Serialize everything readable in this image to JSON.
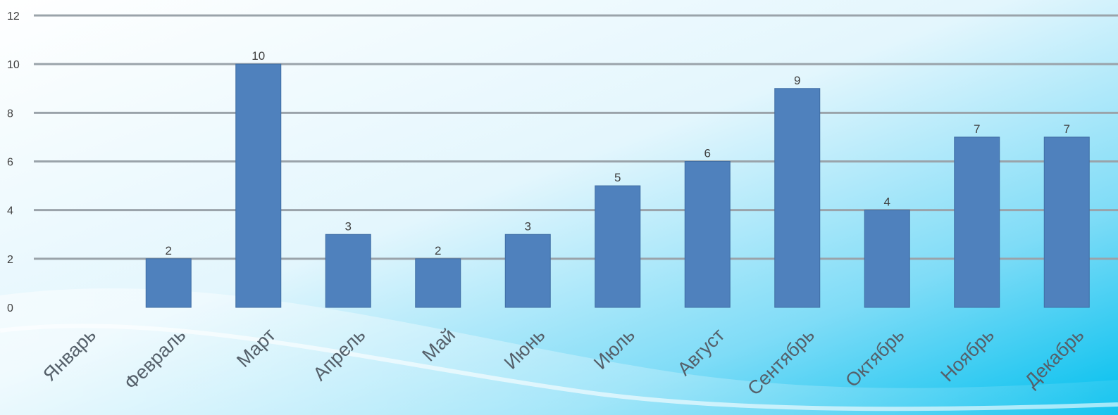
{
  "chart_data": {
    "type": "bar",
    "categories": [
      "Январь",
      "Февраль",
      "Март",
      "Апрель",
      "Май",
      "Июнь",
      "Июль",
      "Август",
      "Сентябрь",
      "Октябрь",
      "Ноябрь",
      "Декабрь"
    ],
    "values": [
      0,
      2,
      10,
      3,
      2,
      3,
      5,
      6,
      9,
      4,
      7,
      7
    ],
    "data_labels": [
      "",
      "2",
      "10",
      "3",
      "2",
      "3",
      "5",
      "6",
      "9",
      "4",
      "7",
      "7"
    ],
    "ylim": [
      0,
      12
    ],
    "yticks": [
      "0",
      "2",
      "4",
      "6",
      "8",
      "10",
      "12"
    ],
    "grid": true,
    "colors": {
      "bar": "#4f81bd",
      "bar_edge": "#3f6da3",
      "grid": "#9aa3aa",
      "text": "#404040",
      "bg_light": "#ffffff",
      "bg_cyan": "#00c2ef"
    }
  }
}
